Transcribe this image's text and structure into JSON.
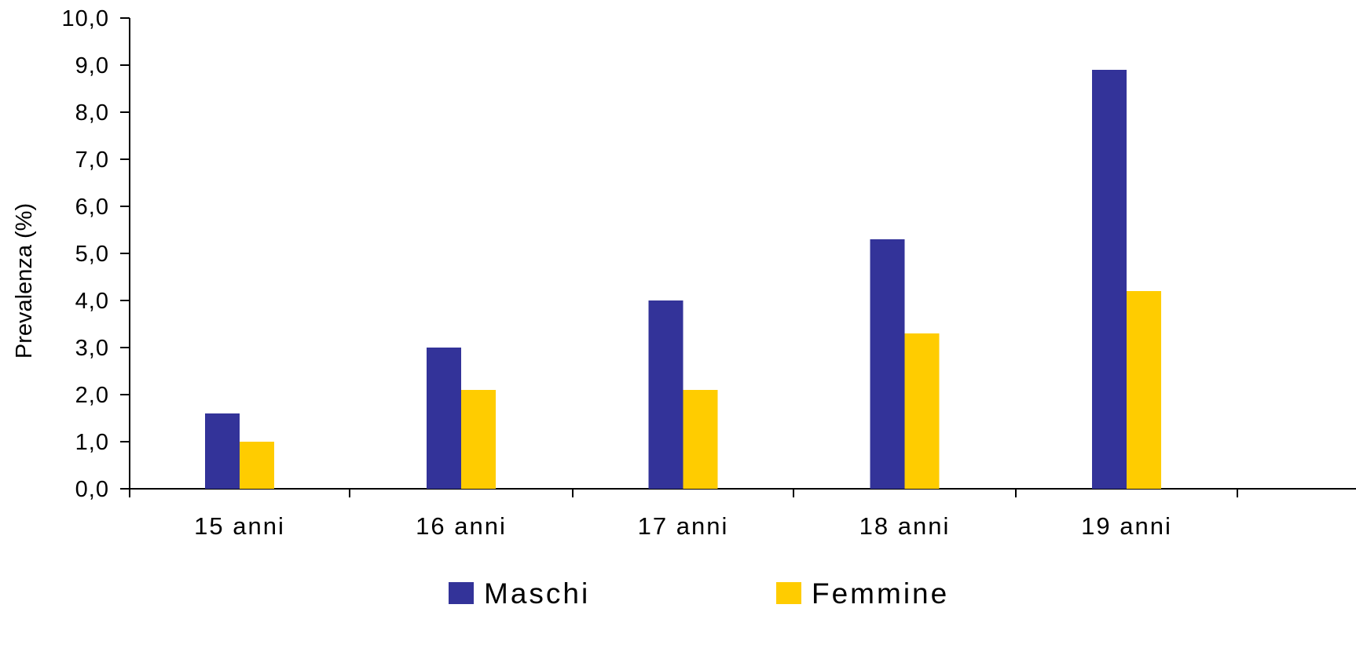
{
  "chart_data": {
    "type": "bar",
    "title": "",
    "xlabel": "",
    "ylabel": "Prevalenza (%)",
    "ylim": [
      0,
      10
    ],
    "yticks": [
      "0,0",
      "1,0",
      "2,0",
      "3,0",
      "4,0",
      "5,0",
      "6,0",
      "7,0",
      "8,0",
      "9,0",
      "10,0"
    ],
    "categories": [
      "15 anni",
      "16 anni",
      "17 anni",
      "18 anni",
      "19 anni"
    ],
    "series": [
      {
        "name": "Maschi",
        "color": "#333399",
        "values": [
          1.6,
          3.0,
          4.0,
          5.3,
          8.9
        ]
      },
      {
        "name": "Femmine",
        "color": "#FFCC00",
        "values": [
          1.0,
          2.1,
          2.1,
          3.3,
          4.2
        ]
      }
    ],
    "grid": false,
    "legend_position": "bottom"
  }
}
